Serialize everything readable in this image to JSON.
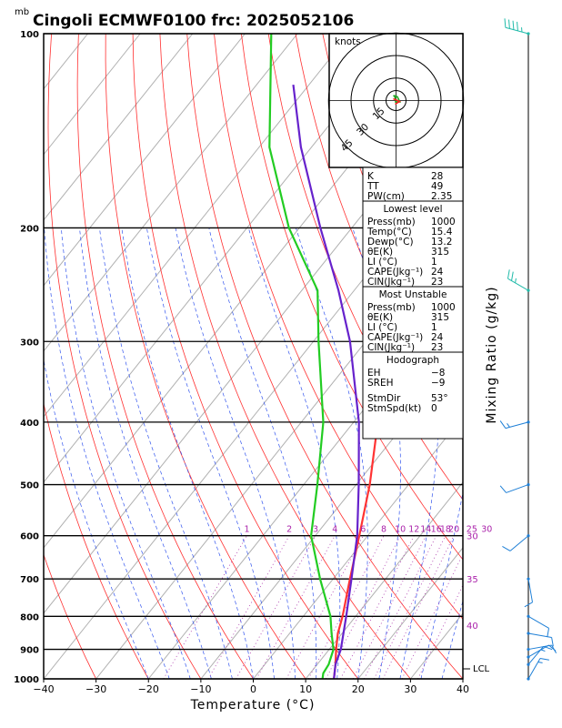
{
  "chart_data": {
    "type": "line",
    "title": "Cingoli ECMWF0100  frc: 2025052106",
    "y_unit": "mb",
    "xlabel": "Temperature (°C)",
    "ylabel_right": "Mixing Ratio (g/kg)",
    "xlim": [
      -40,
      40
    ],
    "ylim": [
      1000,
      100
    ],
    "x_ticks": [
      "−40",
      "−30",
      "−20",
      "−10",
      "0",
      "10",
      "20",
      "30",
      "40"
    ],
    "y_ticks": [
      {
        "p": 100,
        "label": "100"
      },
      {
        "p": 200,
        "label": "200"
      },
      {
        "p": 300,
        "label": "300"
      },
      {
        "p": 400,
        "label": "400"
      },
      {
        "p": 500,
        "label": "500"
      },
      {
        "p": 600,
        "label": "600"
      },
      {
        "p": 700,
        "label": "700"
      },
      {
        "p": 800,
        "label": "800"
      },
      {
        "p": 900,
        "label": "900"
      },
      {
        "p": 1000,
        "label": "1000"
      }
    ],
    "mixing_ratio_labels": [
      "1",
      "2",
      "3",
      "4",
      "6",
      "8",
      "10",
      "12",
      "14",
      "16",
      "18",
      "20",
      "25",
      "30"
    ],
    "theta_e_labels": [
      {
        "value": "30",
        "p": 600
      },
      {
        "value": "35",
        "p": 700
      },
      {
        "value": "40",
        "p": 825
      }
    ],
    "lcl_label": "LCL",
    "series": [
      {
        "name": "Temperature",
        "color": "#ff3333",
        "points": [
          [
            1000,
            15.4
          ],
          [
            950,
            13.5
          ],
          [
            900,
            11.3
          ],
          [
            850,
            9.2
          ],
          [
            800,
            7.5
          ],
          [
            700,
            3.2
          ],
          [
            600,
            -1.6
          ],
          [
            500,
            -7.4
          ],
          [
            400,
            -15.4
          ],
          [
            300,
            -27
          ],
          [
            250,
            -34
          ],
          [
            200,
            -29
          ],
          [
            150,
            -20
          ],
          [
            100,
            -6
          ]
        ]
      },
      {
        "name": "Dewpoint",
        "color": "#22cc22",
        "points": [
          [
            1000,
            13.2
          ],
          [
            980,
            12.5
          ],
          [
            950,
            12.2
          ],
          [
            900,
            10.8
          ],
          [
            850,
            8
          ],
          [
            800,
            5.2
          ],
          [
            700,
            -2.5
          ],
          [
            600,
            -10.8
          ],
          [
            500,
            -17.4
          ],
          [
            400,
            -25.8
          ],
          [
            300,
            -39
          ],
          [
            250,
            -47
          ],
          [
            200,
            -62
          ],
          [
            150,
            -78
          ],
          [
            100,
            -95
          ]
        ]
      },
      {
        "name": "Parcel",
        "color": "#6622cc",
        "points": [
          [
            1000,
            15.4
          ],
          [
            950,
            13.5
          ],
          [
            900,
            12.2
          ],
          [
            800,
            8.2
          ],
          [
            700,
            3.5
          ],
          [
            600,
            -2
          ],
          [
            500,
            -9.5
          ],
          [
            400,
            -19
          ],
          [
            300,
            -33
          ],
          [
            250,
            -43
          ],
          [
            200,
            -56
          ],
          [
            150,
            -72
          ],
          [
            120,
            -83
          ]
        ]
      }
    ],
    "wind_barbs": [
      {
        "p": 1000,
        "dir": 30,
        "kt": 5
      },
      {
        "p": 950,
        "dir": 40,
        "kt": 5
      },
      {
        "p": 925,
        "dir": 60,
        "kt": 10
      },
      {
        "p": 900,
        "dir": 80,
        "kt": 10
      },
      {
        "p": 850,
        "dir": 100,
        "kt": 10
      },
      {
        "p": 800,
        "dir": 120,
        "kt": 10
      },
      {
        "p": 700,
        "dir": 170,
        "kt": 10
      },
      {
        "p": 600,
        "dir": 230,
        "kt": 10
      },
      {
        "p": 500,
        "dir": 250,
        "kt": 10
      },
      {
        "p": 400,
        "dir": 255,
        "kt": 5
      },
      {
        "p": 250,
        "dir": 300,
        "kt": 15
      },
      {
        "p": 100,
        "dir": 285,
        "kt": 35
      }
    ],
    "hodograph": {
      "units": "knots",
      "ring_labels": [
        "15",
        "30",
        "45"
      ],
      "trace": [
        [
          0,
          0
        ],
        [
          -1,
          3
        ],
        [
          -2,
          4
        ],
        [
          1,
          3
        ],
        [
          2,
          1
        ],
        [
          3,
          -1
        ],
        [
          1,
          -1
        ],
        [
          -1,
          -1
        ]
      ]
    }
  },
  "indices": {
    "rows": [
      {
        "label": "K",
        "value": "28"
      },
      {
        "label": "TT",
        "value": "49"
      },
      {
        "label": "PW(cm)",
        "value": "2.35"
      }
    ]
  },
  "lowest_level": {
    "header": "Lowest level",
    "rows": [
      {
        "label": "Press(mb)",
        "value": "1000"
      },
      {
        "label": "Temp(°C)",
        "value": "15.4"
      },
      {
        "label": "Dewp(°C)",
        "value": "13.2"
      },
      {
        "label": "θE(K)",
        "value": "315"
      },
      {
        "label": "LI (°C)",
        "value": "1"
      },
      {
        "label": "CAPE(Jkg⁻¹)",
        "value": "24"
      },
      {
        "label": "CIN(Jkg⁻¹)",
        "value": "23"
      }
    ]
  },
  "most_unstable": {
    "header": "Most Unstable",
    "rows": [
      {
        "label": "Press(mb)",
        "value": "1000"
      },
      {
        "label": "θE(K)",
        "value": "315"
      },
      {
        "label": "LI (°C)",
        "value": "1"
      },
      {
        "label": "CAPE(Jkg⁻¹)",
        "value": "24"
      },
      {
        "label": "CIN(Jkg⁻¹)",
        "value": "23"
      }
    ]
  },
  "hodo_panel": {
    "header": "Hodograph",
    "rows": [
      {
        "label": "EH",
        "value": "−8"
      },
      {
        "label": "SREH",
        "value": "−9"
      },
      {
        "label": "StmDir",
        "value": "53°"
      },
      {
        "label": "StmSpd(kt)",
        "value": "0"
      }
    ]
  }
}
